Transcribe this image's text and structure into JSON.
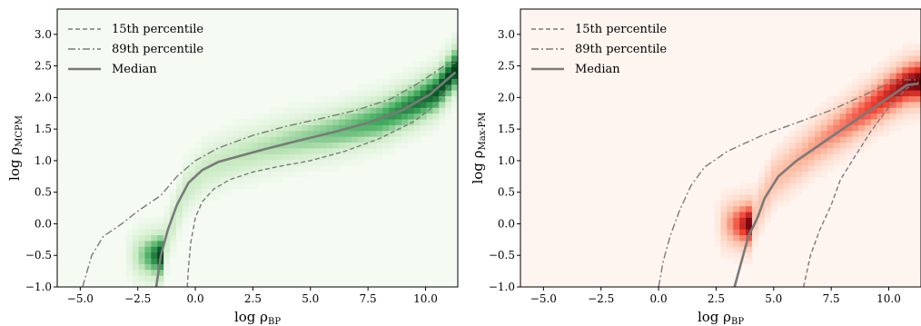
{
  "chart_data": [
    {
      "type": "heatmap",
      "panel": "left",
      "colormap": "greens",
      "xlabel_main": "log ρ",
      "xlabel_sub": "BP",
      "ylabel_main": "log ρ",
      "ylabel_sub": "MCPM",
      "xlim": [
        -6.0,
        11.4
      ],
      "ylim": [
        -1.0,
        3.4
      ],
      "xticks": [
        -5.0,
        -2.5,
        0.0,
        2.5,
        5.0,
        7.5,
        10.0
      ],
      "xtick_labels": [
        "−5.0",
        "−2.5",
        "0.0",
        "2.5",
        "5.0",
        "7.5",
        "10.0"
      ],
      "yticks": [
        -1.0,
        -0.5,
        0.0,
        0.5,
        1.0,
        1.5,
        2.0,
        2.5,
        3.0
      ],
      "ytick_labels": [
        "−1.0",
        "−0.5",
        "0.0",
        "0.5",
        "1.0",
        "1.5",
        "2.0",
        "2.5",
        "3.0"
      ],
      "grid": false,
      "legend_position": "upper-left",
      "series": [
        {
          "name": "15th percentile",
          "style": "dashed",
          "points": [
            [
              -0.35,
              -1.0
            ],
            [
              -0.3,
              -0.7
            ],
            [
              -0.2,
              -0.3
            ],
            [
              0.0,
              0.1
            ],
            [
              0.3,
              0.35
            ],
            [
              0.8,
              0.55
            ],
            [
              1.5,
              0.7
            ],
            [
              2.5,
              0.82
            ],
            [
              3.5,
              0.9
            ],
            [
              5.0,
              1.0
            ],
            [
              6.5,
              1.15
            ],
            [
              8.0,
              1.35
            ],
            [
              9.5,
              1.62
            ],
            [
              10.5,
              1.9
            ],
            [
              11.2,
              2.25
            ]
          ]
        },
        {
          "name": "89th percentile",
          "style": "dashdot",
          "points": [
            [
              -4.9,
              -1.0
            ],
            [
              -4.5,
              -0.5
            ],
            [
              -4.0,
              -0.2
            ],
            [
              -3.2,
              0.0
            ],
            [
              -2.5,
              0.2
            ],
            [
              -1.5,
              0.45
            ],
            [
              -0.8,
              0.75
            ],
            [
              0.0,
              1.0
            ],
            [
              1.0,
              1.2
            ],
            [
              2.5,
              1.4
            ],
            [
              4.0,
              1.55
            ],
            [
              5.5,
              1.67
            ],
            [
              7.0,
              1.8
            ],
            [
              8.5,
              1.98
            ],
            [
              9.8,
              2.25
            ],
            [
              10.8,
              2.5
            ],
            [
              11.3,
              2.55
            ]
          ]
        },
        {
          "name": "Median",
          "style": "solid",
          "points": [
            [
              -1.7,
              -1.0
            ],
            [
              -1.5,
              -0.5
            ],
            [
              -1.2,
              -0.1
            ],
            [
              -0.8,
              0.3
            ],
            [
              -0.3,
              0.65
            ],
            [
              0.3,
              0.85
            ],
            [
              1.0,
              0.98
            ],
            [
              2.0,
              1.08
            ],
            [
              3.0,
              1.18
            ],
            [
              4.5,
              1.32
            ],
            [
              6.0,
              1.45
            ],
            [
              7.5,
              1.6
            ],
            [
              9.0,
              1.8
            ],
            [
              10.2,
              2.05
            ],
            [
              11.3,
              2.4
            ]
          ]
        }
      ],
      "density_ridge": [
        [
          -1.5,
          -0.5
        ],
        [
          -0.5,
          0.5
        ],
        [
          0.5,
          0.9
        ],
        [
          2.0,
          1.1
        ],
        [
          4.0,
          1.3
        ],
        [
          6.0,
          1.45
        ],
        [
          8.0,
          1.65
        ],
        [
          9.5,
          1.9
        ],
        [
          10.5,
          2.1
        ],
        [
          11.3,
          2.45
        ]
      ],
      "colors": {
        "dark": "#00441b",
        "mid": "#41ab5d",
        "light": "#c7e9c0",
        "background": "#f5fbf3"
      }
    },
    {
      "type": "heatmap",
      "panel": "right",
      "colormap": "reds",
      "xlabel_main": "log ρ",
      "xlabel_sub": "BP",
      "ylabel_main": "log ρ",
      "ylabel_sub": "Max-PM",
      "xlim": [
        -6.0,
        11.4
      ],
      "ylim": [
        -1.0,
        3.4
      ],
      "xticks": [
        -5.0,
        -2.5,
        0.0,
        2.5,
        5.0,
        7.5,
        10.0
      ],
      "xtick_labels": [
        "−5.0",
        "−2.5",
        "0.0",
        "2.5",
        "5.0",
        "7.5",
        "10.0"
      ],
      "yticks": [
        -1.0,
        -0.5,
        0.0,
        0.5,
        1.0,
        1.5,
        2.0,
        2.5,
        3.0
      ],
      "ytick_labels": [
        "−1.0",
        "−0.5",
        "0.0",
        "0.5",
        "1.0",
        "1.5",
        "2.0",
        "2.5",
        "3.0"
      ],
      "grid": false,
      "legend_position": "upper-left",
      "series": [
        {
          "name": "15th percentile",
          "style": "dashed",
          "points": [
            [
              6.3,
              -1.0
            ],
            [
              6.6,
              -0.5
            ],
            [
              7.0,
              -0.1
            ],
            [
              7.5,
              0.3
            ],
            [
              7.9,
              0.7
            ],
            [
              8.5,
              1.05
            ],
            [
              9.2,
              1.45
            ],
            [
              10.0,
              1.85
            ],
            [
              10.8,
              2.15
            ],
            [
              11.3,
              2.25
            ]
          ]
        },
        {
          "name": "89th percentile",
          "style": "dashdot",
          "points": [
            [
              0.0,
              -1.0
            ],
            [
              0.2,
              -0.6
            ],
            [
              0.5,
              -0.2
            ],
            [
              0.9,
              0.2
            ],
            [
              1.4,
              0.6
            ],
            [
              2.0,
              0.9
            ],
            [
              3.0,
              1.15
            ],
            [
              4.5,
              1.4
            ],
            [
              6.0,
              1.6
            ],
            [
              7.5,
              1.8
            ],
            [
              9.0,
              2.05
            ],
            [
              10.3,
              2.28
            ],
            [
              11.3,
              2.28
            ]
          ]
        },
        {
          "name": "Median",
          "style": "solid",
          "points": [
            [
              3.3,
              -1.0
            ],
            [
              3.6,
              -0.6
            ],
            [
              3.9,
              -0.2
            ],
            [
              4.3,
              0.1
            ],
            [
              4.6,
              0.4
            ],
            [
              5.2,
              0.75
            ],
            [
              6.0,
              1.0
            ],
            [
              7.0,
              1.25
            ],
            [
              8.0,
              1.5
            ],
            [
              9.0,
              1.75
            ],
            [
              10.0,
              2.0
            ],
            [
              10.8,
              2.2
            ],
            [
              11.3,
              2.22
            ]
          ]
        }
      ],
      "density_ridge": [
        [
          4.0,
          0.0
        ],
        [
          5.0,
          0.7
        ],
        [
          6.0,
          1.0
        ],
        [
          7.0,
          1.3
        ],
        [
          8.0,
          1.55
        ],
        [
          9.0,
          1.8
        ],
        [
          10.0,
          2.05
        ],
        [
          10.8,
          2.22
        ],
        [
          11.3,
          2.25
        ]
      ],
      "colors": {
        "dark": "#67000d",
        "mid": "#ef3b2c",
        "light": "#fcbba1",
        "background": "#fff5f0"
      }
    }
  ]
}
